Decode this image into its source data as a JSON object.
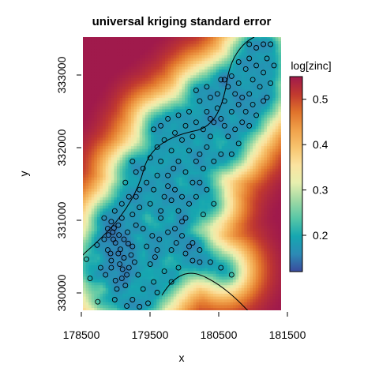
{
  "chart_data": {
    "type": "heatmap",
    "title": "universal kriging standard error",
    "xlabel": "x",
    "ylabel": "y",
    "xlim": [
      178600,
      181400
    ],
    "ylim": [
      329700,
      333550
    ],
    "x_ticks": [
      "178500",
      "179500",
      "180500",
      "181500"
    ],
    "x_tick_values": [
      178500,
      179500,
      180500,
      181500
    ],
    "y_ticks": [
      "330000",
      "331000",
      "332000",
      "333000"
    ],
    "y_tick_values": [
      330000,
      331000,
      332000,
      333000
    ],
    "legend": {
      "title": "log[zinc]",
      "placement": "right",
      "range": [
        0.12,
        0.55
      ],
      "ticks": [
        "0.2",
        "0.3",
        "0.4",
        "0.5"
      ],
      "tick_values": [
        0.2,
        0.3,
        0.4,
        0.5
      ]
    },
    "colormap": [
      "#3a4b9d",
      "#2c8bb5",
      "#16a7b0",
      "#57c7a6",
      "#9fd9a4",
      "#e7efae",
      "#fbe3a0",
      "#f7c46e",
      "#f0a14a",
      "#e0732b",
      "#c1392f",
      "#a01a4c"
    ],
    "grid": false,
    "points": [
      [
        178650,
        330420
      ],
      [
        178700,
        330150
      ],
      [
        178800,
        330620
      ],
      [
        178850,
        330300
      ],
      [
        178900,
        330700
      ],
      [
        178950,
        330850
      ],
      [
        179000,
        330950
      ],
      [
        179020,
        330800
      ],
      [
        179060,
        330650
      ],
      [
        179100,
        330500
      ],
      [
        179000,
        330400
      ],
      [
        178950,
        330550
      ],
      [
        179120,
        330350
      ],
      [
        179150,
        330150
      ],
      [
        179080,
        330000
      ],
      [
        179050,
        329850
      ],
      [
        178920,
        330200
      ],
      [
        178810,
        329820
      ],
      [
        179200,
        330050
      ],
      [
        179250,
        330300
      ],
      [
        179300,
        330600
      ],
      [
        179350,
        330900
      ],
      [
        179180,
        330700
      ],
      [
        179230,
        330800
      ],
      [
        179100,
        330900
      ],
      [
        179150,
        331000
      ],
      [
        179300,
        331050
      ],
      [
        179400,
        331150
      ],
      [
        179450,
        330850
      ],
      [
        179500,
        330600
      ],
      [
        179550,
        330350
      ],
      [
        179380,
        330200
      ],
      [
        179450,
        330000
      ],
      [
        179300,
        329850
      ],
      [
        179400,
        329750
      ],
      [
        179220,
        329760
      ],
      [
        179600,
        330100
      ],
      [
        179620,
        330450
      ],
      [
        179680,
        330700
      ],
      [
        179700,
        331000
      ],
      [
        179750,
        331300
      ],
      [
        179800,
        330800
      ],
      [
        179850,
        330550
      ],
      [
        179900,
        330850
      ],
      [
        179950,
        331100
      ],
      [
        180000,
        330750
      ],
      [
        180050,
        331000
      ],
      [
        180100,
        330600
      ],
      [
        180150,
        330400
      ],
      [
        180250,
        330380
      ],
      [
        180400,
        330380
      ],
      [
        180550,
        330300
      ],
      [
        180700,
        330200
      ],
      [
        179550,
        331200
      ],
      [
        179600,
        331400
      ],
      [
        179650,
        331600
      ],
      [
        179500,
        331500
      ],
      [
        179450,
        331700
      ],
      [
        179400,
        331400
      ],
      [
        179350,
        331650
      ],
      [
        179300,
        331800
      ],
      [
        179550,
        331850
      ],
      [
        179700,
        331800
      ],
      [
        179800,
        331600
      ],
      [
        179900,
        331400
      ],
      [
        180000,
        331300
      ],
      [
        180100,
        331200
      ],
      [
        180200,
        331300
      ],
      [
        180150,
        331500
      ],
      [
        180050,
        331650
      ],
      [
        179950,
        331800
      ],
      [
        179850,
        331950
      ],
      [
        179750,
        332100
      ],
      [
        179650,
        332000
      ],
      [
        179600,
        332250
      ],
      [
        179700,
        332300
      ],
      [
        179800,
        332400
      ],
      [
        179900,
        332200
      ],
      [
        180000,
        332100
      ],
      [
        180100,
        331950
      ],
      [
        180200,
        331800
      ],
      [
        180300,
        331700
      ],
      [
        180250,
        331900
      ],
      [
        180350,
        332000
      ],
      [
        180150,
        332150
      ],
      [
        180050,
        332300
      ],
      [
        179950,
        332450
      ],
      [
        180100,
        332500
      ],
      [
        180200,
        332350
      ],
      [
        180300,
        332250
      ],
      [
        180400,
        332150
      ],
      [
        180450,
        332350
      ],
      [
        180350,
        332500
      ],
      [
        180250,
        332650
      ],
      [
        180400,
        332700
      ],
      [
        180500,
        332550
      ],
      [
        180550,
        332400
      ],
      [
        180600,
        332650
      ],
      [
        180700,
        332500
      ],
      [
        180750,
        332750
      ],
      [
        180650,
        332850
      ],
      [
        180550,
        332950
      ],
      [
        180700,
        333000
      ],
      [
        180800,
        332900
      ],
      [
        180850,
        332700
      ],
      [
        180900,
        332500
      ],
      [
        180950,
        332750
      ],
      [
        181000,
        332950
      ],
      [
        180900,
        333100
      ],
      [
        180800,
        333200
      ],
      [
        180950,
        333250
      ],
      [
        181050,
        333150
      ],
      [
        181100,
        332850
      ],
      [
        181150,
        333050
      ],
      [
        181200,
        333250
      ],
      [
        181050,
        333400
      ],
      [
        180950,
        333450
      ],
      [
        181150,
        333450
      ],
      [
        181250,
        333450
      ],
      [
        181300,
        333150
      ],
      [
        181000,
        332600
      ],
      [
        180850,
        332350
      ],
      [
        180750,
        332250
      ],
      [
        180650,
        332150
      ],
      [
        180550,
        331900
      ],
      [
        180450,
        331800
      ],
      [
        180700,
        331900
      ],
      [
        180800,
        332050
      ],
      [
        180950,
        332300
      ],
      [
        181050,
        332450
      ],
      [
        181150,
        332650
      ],
      [
        181250,
        332900
      ],
      [
        180050,
        330500
      ],
      [
        179750,
        330250
      ],
      [
        179850,
        330100
      ],
      [
        179950,
        330300
      ],
      [
        180150,
        330650
      ],
      [
        180250,
        330550
      ],
      [
        179650,
        329950
      ],
      [
        179520,
        329800
      ],
      [
        179150,
        331200
      ],
      [
        179250,
        331300
      ],
      [
        179050,
        331100
      ],
      [
        178900,
        331000
      ],
      [
        179350,
        331300
      ],
      [
        179200,
        331500
      ],
      [
        179700,
        331100
      ],
      [
        179850,
        331250
      ],
      [
        180250,
        331500
      ],
      [
        180300,
        331050
      ],
      [
        180450,
        331200
      ],
      [
        180350,
        331400
      ],
      [
        179650,
        330550
      ],
      [
        179580,
        330750
      ],
      [
        179920,
        330650
      ],
      [
        180000,
        330950
      ],
      [
        179800,
        331450
      ],
      [
        179880,
        331700
      ],
      [
        180400,
        332400
      ],
      [
        180600,
        332300
      ],
      [
        180500,
        332750
      ],
      [
        180600,
        332950
      ],
      [
        180350,
        332850
      ],
      [
        180200,
        332800
      ],
      [
        180800,
        332600
      ],
      [
        181200,
        332700
      ],
      [
        179000,
        330300
      ],
      [
        179060,
        330120
      ],
      [
        178990,
        330500
      ],
      [
        179130,
        330560
      ],
      [
        179180,
        330440
      ],
      [
        179030,
        330700
      ],
      [
        179240,
        330640
      ],
      [
        179110,
        330760
      ],
      [
        179040,
        330860
      ],
      [
        178960,
        330760
      ],
      [
        179280,
        330480
      ],
      [
        179330,
        330380
      ],
      [
        179220,
        330200
      ],
      [
        179160,
        330280
      ]
    ]
  }
}
